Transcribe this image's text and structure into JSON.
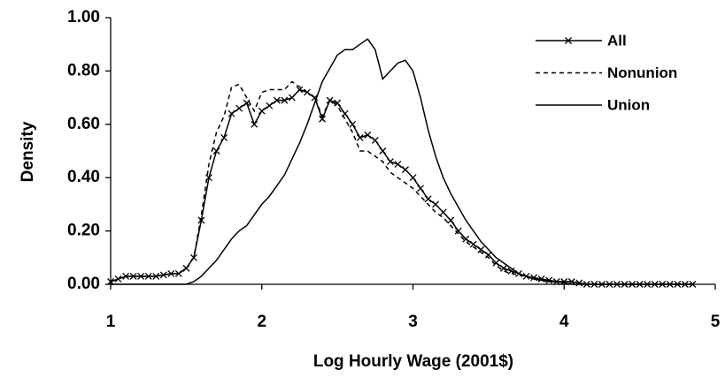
{
  "chart_data": {
    "type": "line",
    "xlabel": "Log Hourly Wage (2001$)",
    "ylabel": "Density",
    "x": [
      1,
      1.05,
      1.1,
      1.15,
      1.2,
      1.25,
      1.3,
      1.35,
      1.4,
      1.45,
      1.5,
      1.55,
      1.6,
      1.65,
      1.7,
      1.75,
      1.8,
      1.85,
      1.9,
      1.95,
      2,
      2.05,
      2.1,
      2.15,
      2.2,
      2.25,
      2.3,
      2.35,
      2.4,
      2.45,
      2.5,
      2.55,
      2.6,
      2.65,
      2.7,
      2.75,
      2.8,
      2.85,
      2.9,
      2.95,
      3,
      3.05,
      3.1,
      3.15,
      3.2,
      3.25,
      3.3,
      3.35,
      3.4,
      3.45,
      3.5,
      3.55,
      3.6,
      3.65,
      3.7,
      3.75,
      3.8,
      3.85,
      3.9,
      3.95,
      4,
      4.05,
      4.1,
      4.15,
      4.2,
      4.25,
      4.3,
      4.35,
      4.4,
      4.45,
      4.5,
      4.55,
      4.6,
      4.65,
      4.7,
      4.75,
      4.8,
      4.85
    ],
    "series": [
      {
        "name": "All",
        "color": "#000000",
        "style": "solid",
        "marker": "x",
        "values": [
          0.01,
          0.02,
          0.03,
          0.03,
          0.03,
          0.03,
          0.03,
          0.035,
          0.04,
          0.04,
          0.06,
          0.1,
          0.24,
          0.4,
          0.5,
          0.55,
          0.64,
          0.66,
          0.68,
          0.6,
          0.65,
          0.67,
          0.69,
          0.69,
          0.7,
          0.73,
          0.72,
          0.7,
          0.62,
          0.69,
          0.68,
          0.64,
          0.6,
          0.55,
          0.56,
          0.54,
          0.5,
          0.46,
          0.45,
          0.43,
          0.4,
          0.36,
          0.32,
          0.3,
          0.27,
          0.24,
          0.2,
          0.17,
          0.15,
          0.13,
          0.11,
          0.08,
          0.06,
          0.05,
          0.04,
          0.03,
          0.025,
          0.02,
          0.015,
          0.01,
          0.01,
          0.01,
          0.005,
          0,
          0,
          0,
          0,
          0,
          0,
          0,
          0,
          0,
          0,
          0,
          0,
          0,
          0,
          0
        ]
      },
      {
        "name": "Nonunion",
        "color": "#000000",
        "style": "dashed",
        "values": [
          0.01,
          0.02,
          0.03,
          0.03,
          0.03,
          0.03,
          0.03,
          0.035,
          0.04,
          0.04,
          0.06,
          0.1,
          0.26,
          0.45,
          0.57,
          0.63,
          0.74,
          0.75,
          0.7,
          0.65,
          0.72,
          0.73,
          0.73,
          0.73,
          0.76,
          0.74,
          0.72,
          0.7,
          0.63,
          0.69,
          0.67,
          0.62,
          0.57,
          0.5,
          0.5,
          0.48,
          0.46,
          0.42,
          0.4,
          0.38,
          0.36,
          0.33,
          0.3,
          0.27,
          0.25,
          0.22,
          0.19,
          0.16,
          0.14,
          0.12,
          0.1,
          0.07,
          0.05,
          0.04,
          0.035,
          0.03,
          0.02,
          0.02,
          0.015,
          0.01,
          0.01,
          0.01,
          0.005,
          0,
          0,
          0,
          0,
          0,
          0,
          0,
          0,
          0,
          0,
          0,
          0,
          0,
          0,
          0
        ]
      },
      {
        "name": "Union",
        "color": "#000000",
        "style": "solid",
        "values": [
          0,
          0,
          0,
          0,
          0,
          0,
          0,
          0,
          0,
          0,
          0,
          0.01,
          0.03,
          0.06,
          0.09,
          0.13,
          0.17,
          0.2,
          0.22,
          0.26,
          0.3,
          0.33,
          0.37,
          0.41,
          0.47,
          0.53,
          0.6,
          0.68,
          0.76,
          0.81,
          0.86,
          0.88,
          0.88,
          0.9,
          0.92,
          0.88,
          0.77,
          0.8,
          0.83,
          0.84,
          0.8,
          0.7,
          0.58,
          0.48,
          0.4,
          0.34,
          0.29,
          0.24,
          0.2,
          0.16,
          0.13,
          0.1,
          0.08,
          0.06,
          0.04,
          0.03,
          0.02,
          0.015,
          0.01,
          0.01,
          0.005,
          0,
          0,
          0,
          0,
          0,
          0,
          0,
          0,
          0,
          0,
          0,
          0,
          0,
          0,
          0,
          0,
          0
        ]
      }
    ],
    "xlim": [
      1,
      5
    ],
    "xticks": [
      1,
      2,
      3,
      4,
      5
    ],
    "ylim": [
      0,
      1
    ],
    "yticks": [
      {
        "value": 0,
        "label": "0.00"
      },
      {
        "value": 0.2,
        "label": "0.20"
      },
      {
        "value": 0.4,
        "label": "0.40"
      },
      {
        "value": 0.6,
        "label": "0.60"
      },
      {
        "value": 0.8,
        "label": "0.80"
      },
      {
        "value": 1,
        "label": "1.00"
      }
    ],
    "legend": "upper right"
  }
}
